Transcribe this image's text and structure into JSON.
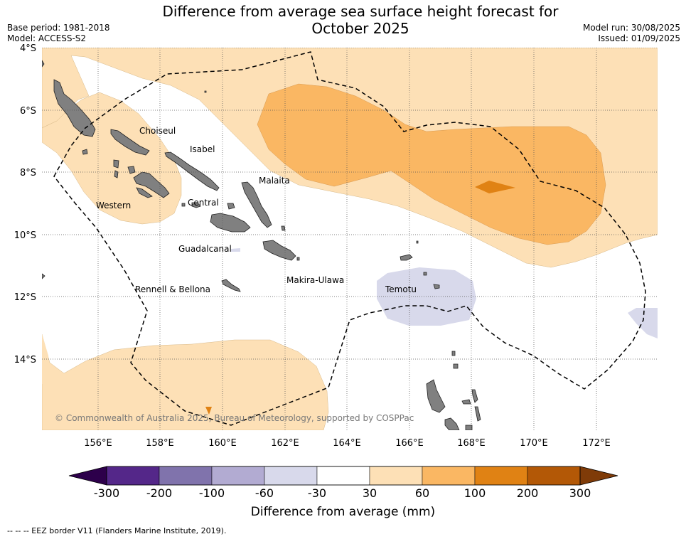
{
  "header": {
    "title_line1": "Difference from average sea surface height forecast for",
    "title_line2": "October 2025",
    "base_period": "Base period: 1981-2018",
    "model": "Model: ACCESS-S2",
    "model_run": "Model run: 30/08/2025",
    "issued": "Issued: 01/09/2025"
  },
  "map": {
    "lat_labels": [
      "4°S",
      "6°S",
      "8°S",
      "10°S",
      "12°S",
      "14°S"
    ],
    "lon_labels": [
      "156°E",
      "158°E",
      "160°E",
      "162°E",
      "164°E",
      "166°E",
      "168°E",
      "170°E",
      "172°E"
    ],
    "lat_range": [
      -16.3,
      -4.0
    ],
    "lon_range": [
      154.2,
      174.0
    ],
    "grid": true,
    "copyright": "© Commonwealth of Australia 2025, Bureau of Meteorology, supported by COSPPac",
    "province_labels": [
      "Choiseul",
      "Isabel",
      "Malaita",
      "Western",
      "Central",
      "Guadalcanal",
      "Makira-Ulawa",
      "Rennell & Bellona",
      "Temotu"
    ],
    "colors": {
      "land": "#808080",
      "level_30_60": "#fde0b6",
      "level_60_100": "#fab763",
      "level_100_200": "#e08214",
      "level_neg30_neg60": "#d8d9eb"
    }
  },
  "colorbar": {
    "ticks": [
      "-300",
      "-200",
      "-100",
      "-60",
      "-30",
      "30",
      "60",
      "100",
      "200",
      "300"
    ],
    "colors": [
      "#542789",
      "#8073ac",
      "#b2abd2",
      "#d8d9eb",
      "#ffffff",
      "#fde0b6",
      "#fab763",
      "#e08214",
      "#b35806"
    ],
    "under_color": "#2d004b",
    "over_color": "#7f3b08",
    "label": "Difference from average (mm)"
  },
  "footnote": "--  --  -- EEZ border V11 (Flanders Marine Institute, 2019)."
}
